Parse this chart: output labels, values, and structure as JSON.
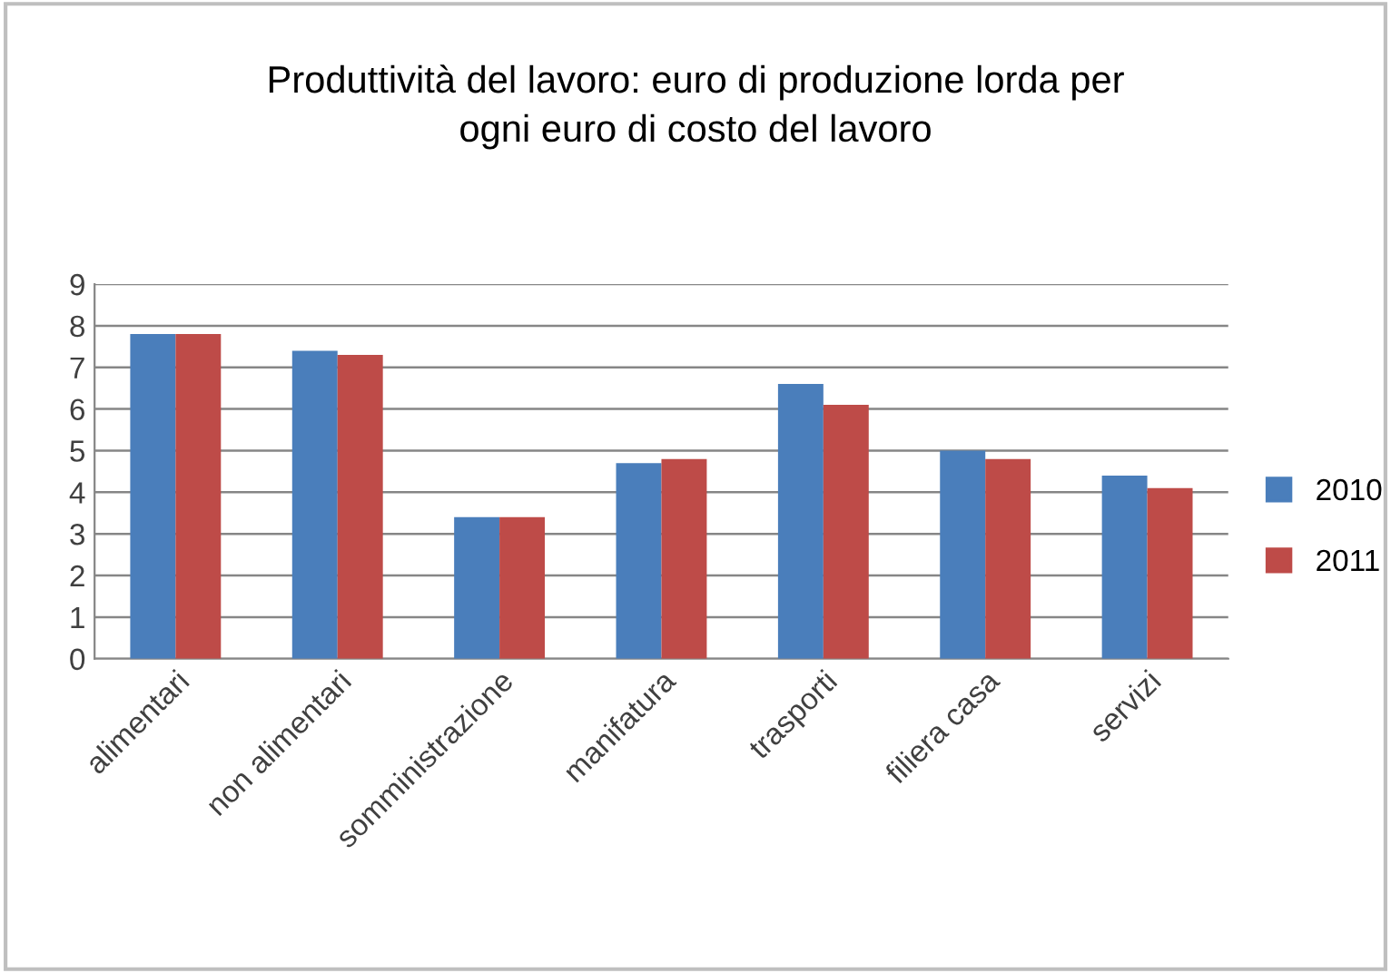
{
  "chart_data": {
    "type": "bar",
    "title": "Produttività del lavoro: euro di produzione lorda per\nogni euro di costo del lavoro",
    "categories": [
      "alimentari",
      "non alimentari",
      "somministrazione",
      "manifatura",
      "trasporti",
      "filiera casa",
      "servizi"
    ],
    "series": [
      {
        "name": "2010",
        "color": "#4a7ebb",
        "values": [
          7.8,
          7.4,
          3.4,
          4.7,
          6.6,
          5.0,
          4.4
        ]
      },
      {
        "name": "2011",
        "color": "#be4b48",
        "values": [
          7.8,
          7.3,
          3.4,
          4.8,
          6.1,
          4.8,
          4.1
        ]
      }
    ],
    "ylim": [
      0,
      9
    ],
    "yticks": [
      0,
      1,
      2,
      3,
      4,
      5,
      6,
      7,
      8,
      9
    ],
    "grid": "y",
    "legend": "right"
  }
}
